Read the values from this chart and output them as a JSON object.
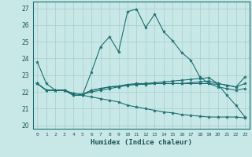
{
  "xlabel": "Humidex (Indice chaleur)",
  "background_color": "#c8e8e8",
  "grid_color": "#a8cccc",
  "line_color": "#1a7070",
  "xlim": [
    -0.5,
    23.5
  ],
  "ylim": [
    19.8,
    27.4
  ],
  "xticks": [
    0,
    1,
    2,
    3,
    4,
    5,
    6,
    7,
    8,
    9,
    10,
    11,
    12,
    13,
    14,
    15,
    16,
    17,
    18,
    19,
    20,
    21,
    22,
    23
  ],
  "yticks": [
    20,
    21,
    22,
    23,
    24,
    25,
    26,
    27
  ],
  "series": [
    [
      23.8,
      22.5,
      22.1,
      22.1,
      21.8,
      21.8,
      23.2,
      24.7,
      25.3,
      24.4,
      26.8,
      26.95,
      25.85,
      26.65,
      25.6,
      25.05,
      24.35,
      23.9,
      22.9,
      22.5,
      22.45,
      21.8,
      21.2,
      20.5
    ],
    [
      22.5,
      22.1,
      22.1,
      22.1,
      21.9,
      21.85,
      22.1,
      22.2,
      22.3,
      22.35,
      22.45,
      22.5,
      22.5,
      22.55,
      22.6,
      22.65,
      22.7,
      22.75,
      22.8,
      22.85,
      22.5,
      22.4,
      22.3,
      22.9
    ],
    [
      22.5,
      22.1,
      22.1,
      22.1,
      21.9,
      21.85,
      22.1,
      22.2,
      22.3,
      22.35,
      22.4,
      22.45,
      22.5,
      22.5,
      22.5,
      22.5,
      22.5,
      22.55,
      22.6,
      22.65,
      22.5,
      22.4,
      22.3,
      22.5
    ],
    [
      22.5,
      22.1,
      22.1,
      22.1,
      21.9,
      21.85,
      22.0,
      22.1,
      22.2,
      22.3,
      22.4,
      22.45,
      22.45,
      22.5,
      22.5,
      22.5,
      22.5,
      22.5,
      22.5,
      22.5,
      22.3,
      22.2,
      22.1,
      22.2
    ],
    [
      22.5,
      22.1,
      22.1,
      22.1,
      21.8,
      21.8,
      21.7,
      21.6,
      21.5,
      21.4,
      21.2,
      21.1,
      21.0,
      20.9,
      20.8,
      20.75,
      20.65,
      20.6,
      20.55,
      20.5,
      20.5,
      20.5,
      20.5,
      20.45
    ]
  ]
}
